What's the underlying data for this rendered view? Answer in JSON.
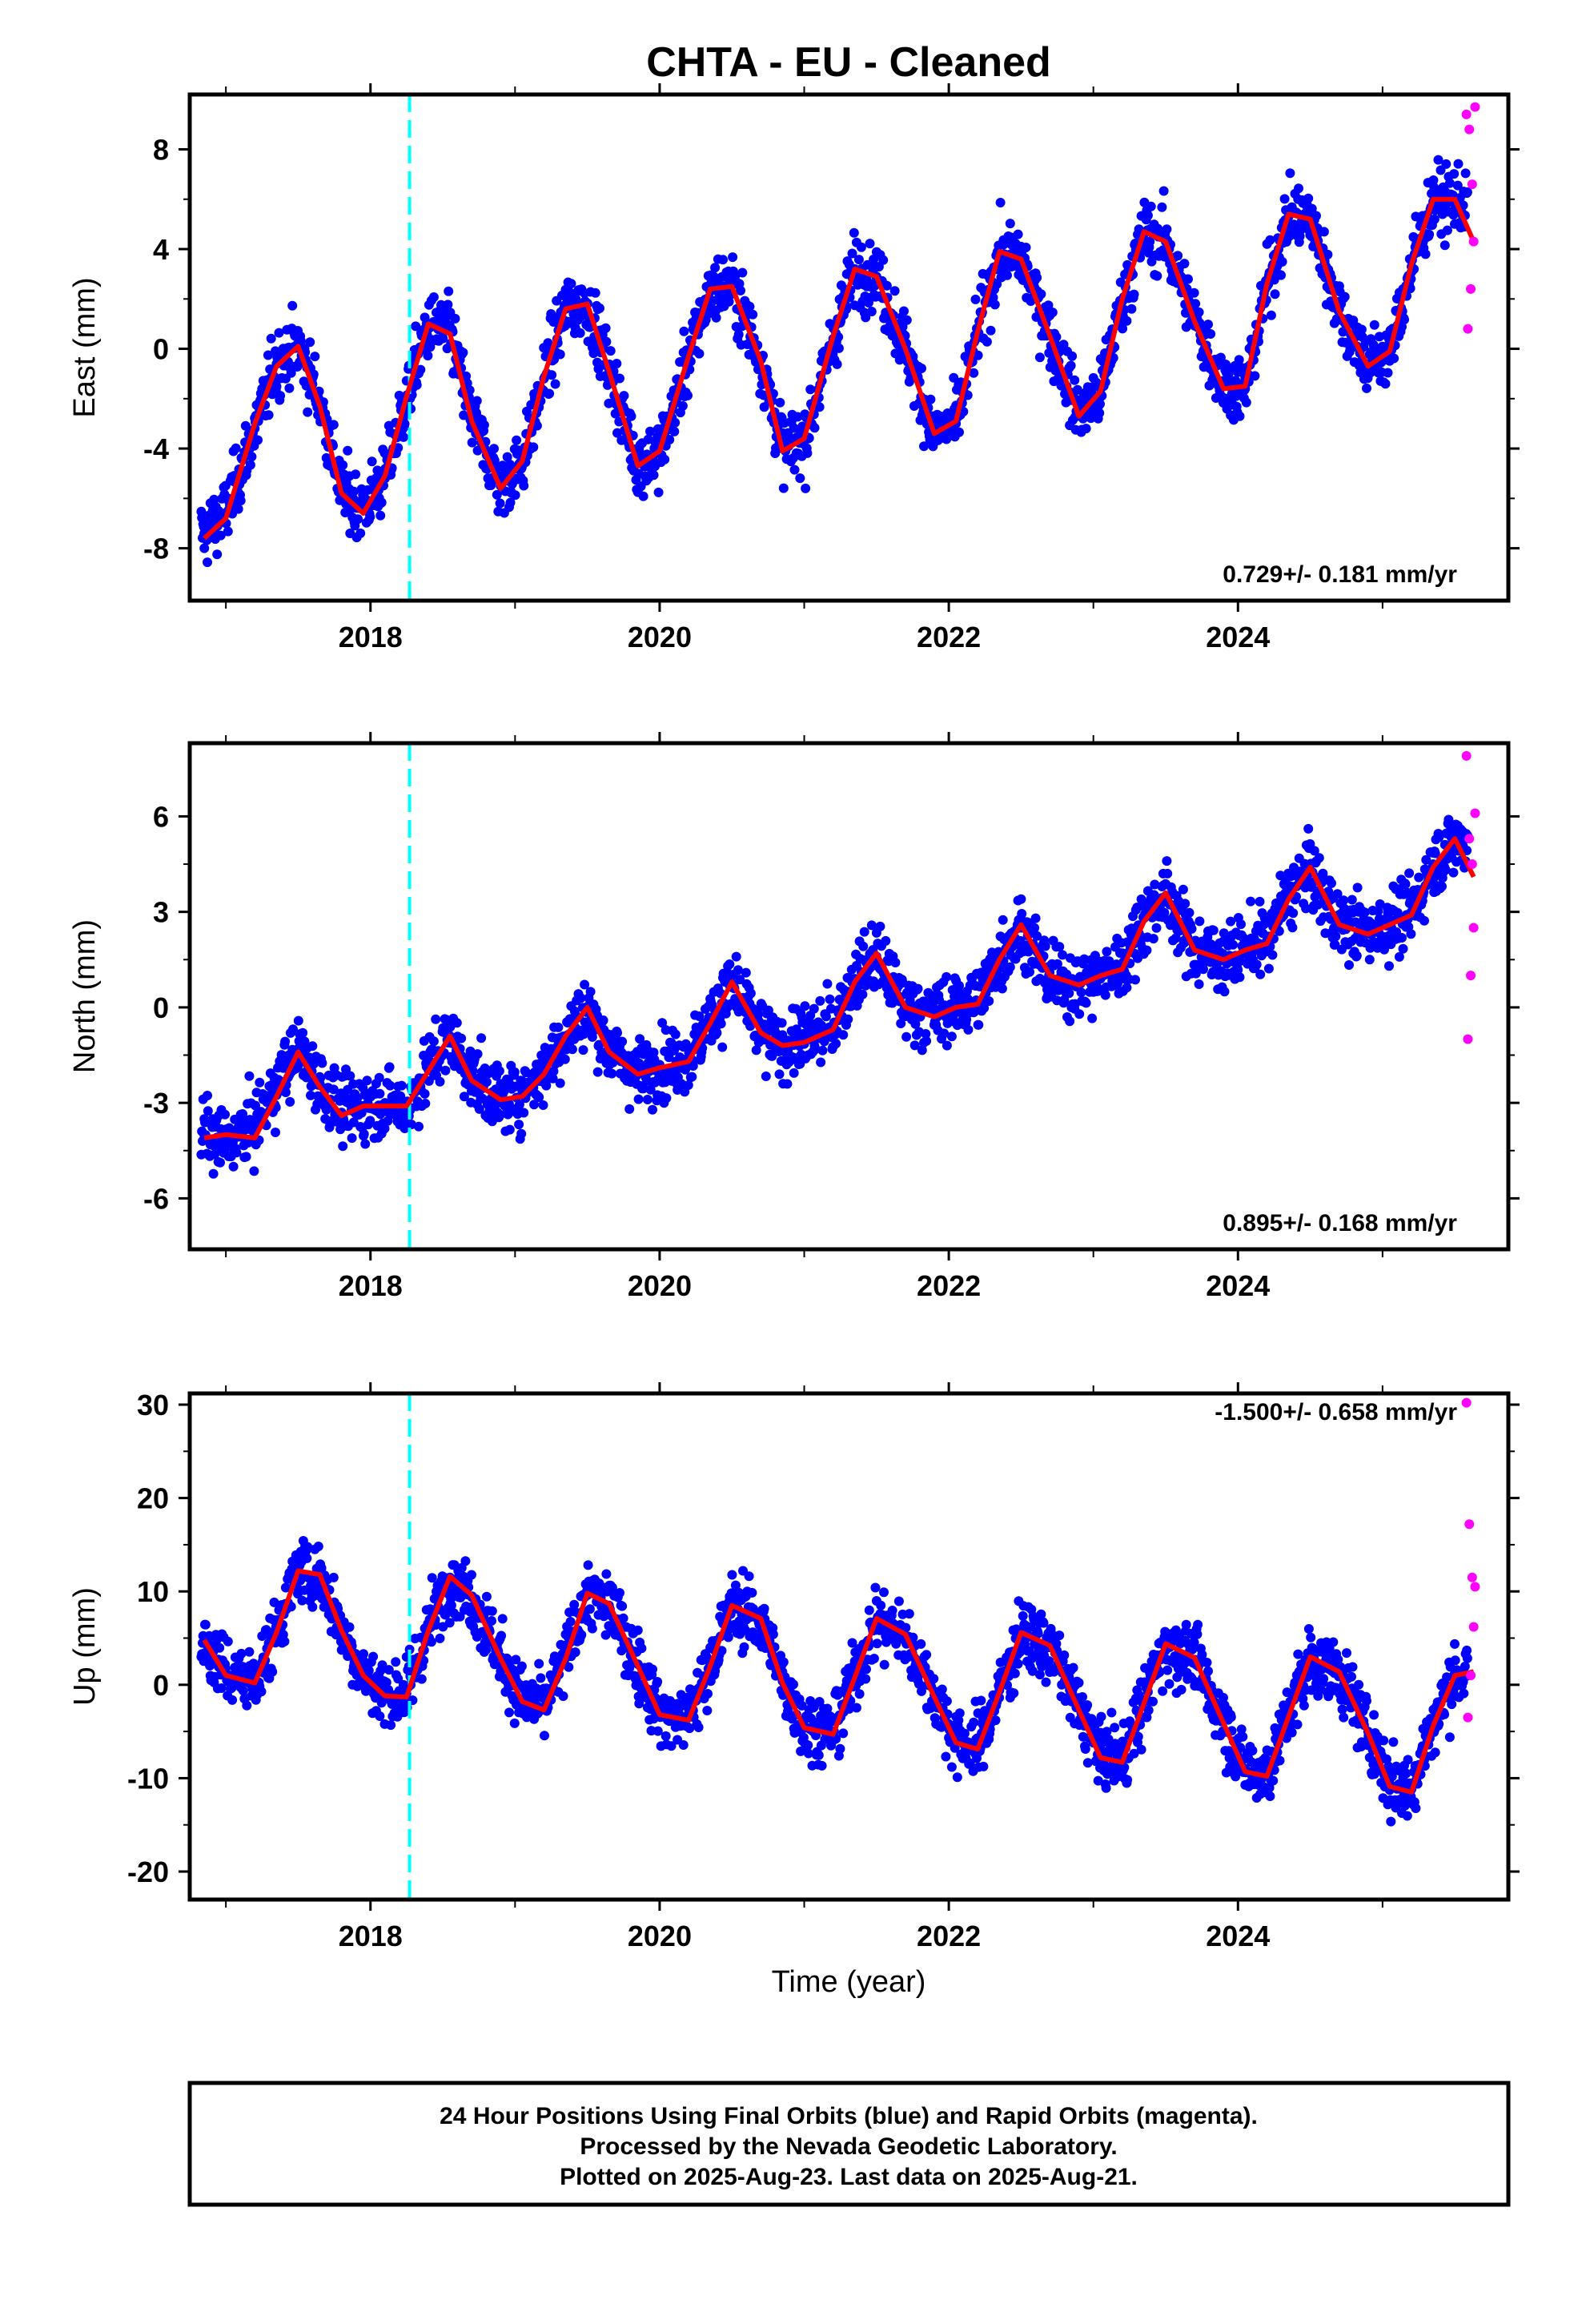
{
  "title": "CHTA  - EU - Cleaned",
  "xlabel": "Time (year)",
  "footer": [
    "24 Hour Positions Using Final Orbits (blue) and Rapid Orbits (magenta).",
    "Processed by the Nevada Geodetic Laboratory.",
    "Plotted on 2025-Aug-23. Last data on 2025-Aug-21."
  ],
  "colors": {
    "final": "#0000ff",
    "rapid": "#ff00ff",
    "model": "#ff0000",
    "event": "#00ffff"
  },
  "chart_data": [
    {
      "type": "scatter",
      "ylabel": "East (mm)",
      "rate_label": "0.729+/- 0.181 mm/yr",
      "xlim": [
        2016.75,
        2025.87
      ],
      "ylim": [
        -10.1,
        10.2
      ],
      "xticks": [
        2018,
        2020,
        2022,
        2024
      ],
      "yticks": [
        -8,
        -4,
        0,
        4,
        8
      ],
      "event_line_x": 2018.27,
      "series": [
        {
          "name": "Final Orbits",
          "x": [
            2016.85,
            2017.0,
            2017.2,
            2017.35,
            2017.5,
            2017.65,
            2017.8,
            2017.95,
            2018.1,
            2018.25,
            2018.4,
            2018.55,
            2018.7,
            2018.9,
            2019.05,
            2019.2,
            2019.35,
            2019.5,
            2019.65,
            2019.85,
            2020.0,
            2020.2,
            2020.35,
            2020.5,
            2020.7,
            2020.85,
            2021.0,
            2021.2,
            2021.35,
            2021.5,
            2021.7,
            2021.9,
            2022.05,
            2022.2,
            2022.35,
            2022.5,
            2022.7,
            2022.9,
            2023.05,
            2023.2,
            2023.35,
            2023.5,
            2023.7,
            2023.9,
            2024.05,
            2024.2,
            2024.35,
            2024.5,
            2024.7,
            2024.9,
            2025.05,
            2025.2,
            2025.35,
            2025.5
          ],
          "y": [
            -7.4,
            -6.6,
            -3.2,
            -0.6,
            0.1,
            -2.1,
            -5.7,
            -6.4,
            -5.2,
            -2.0,
            0.9,
            0.7,
            -2.8,
            -5.5,
            -4.6,
            -1.2,
            1.6,
            1.8,
            -0.8,
            -4.6,
            -4.2,
            -0.4,
            2.3,
            2.6,
            -0.4,
            -4.0,
            -3.7,
            0.4,
            3.2,
            2.9,
            0.1,
            -3.4,
            -3.0,
            0.6,
            3.8,
            3.6,
            0.6,
            -2.6,
            -1.8,
            1.9,
            4.6,
            4.3,
            1.2,
            -1.4,
            -1.6,
            2.5,
            5.3,
            5.2,
            1.6,
            -0.6,
            -0.2,
            3.3,
            5.9,
            5.9
          ]
        },
        {
          "name": "Rapid Orbits",
          "x": [
            2025.58,
            2025.59,
            2025.6,
            2025.61,
            2025.62,
            2025.63,
            2025.64
          ],
          "y": [
            9.4,
            0.8,
            8.8,
            2.4,
            6.6,
            4.3,
            9.7
          ]
        }
      ],
      "model": {
        "x": [
          2016.85,
          2017.0,
          2017.2,
          2017.35,
          2017.5,
          2017.65,
          2017.8,
          2017.95,
          2018.1,
          2018.25,
          2018.4,
          2018.55,
          2018.7,
          2018.9,
          2019.05,
          2019.2,
          2019.35,
          2019.5,
          2019.65,
          2019.85,
          2020.0,
          2020.2,
          2020.35,
          2020.5,
          2020.7,
          2020.85,
          2021.0,
          2021.2,
          2021.35,
          2021.5,
          2021.7,
          2021.9,
          2022.05,
          2022.2,
          2022.35,
          2022.5,
          2022.7,
          2022.9,
          2023.05,
          2023.2,
          2023.35,
          2023.5,
          2023.7,
          2023.9,
          2024.05,
          2024.2,
          2024.35,
          2024.5,
          2024.7,
          2024.9,
          2025.05,
          2025.2,
          2025.35,
          2025.5,
          2025.63
        ],
        "y": [
          -7.6,
          -6.8,
          -3.0,
          -0.7,
          0.1,
          -2.3,
          -5.8,
          -6.6,
          -5.1,
          -1.9,
          1.0,
          0.6,
          -2.9,
          -5.6,
          -4.5,
          -1.1,
          1.6,
          1.8,
          -0.9,
          -4.7,
          -4.1,
          -0.3,
          2.4,
          2.5,
          -0.5,
          -4.1,
          -3.6,
          0.5,
          3.2,
          2.9,
          0.0,
          -3.4,
          -2.9,
          0.7,
          3.9,
          3.6,
          0.5,
          -2.7,
          -1.7,
          2.0,
          4.7,
          4.3,
          1.1,
          -1.6,
          -1.5,
          2.6,
          5.4,
          5.2,
          1.5,
          -0.7,
          -0.1,
          3.4,
          6.0,
          6.0,
          4.3
        ]
      }
    },
    {
      "type": "scatter",
      "ylabel": "North (mm)",
      "rate_label": "0.895+/- 0.168 mm/yr",
      "xlim": [
        2016.75,
        2025.87
      ],
      "ylim": [
        -7.6,
        8.3
      ],
      "xticks": [
        2018,
        2020,
        2022,
        2024
      ],
      "yticks": [
        -6,
        -3,
        0,
        3,
        6
      ],
      "event_line_x": 2018.27,
      "series": [
        {
          "name": "Final Orbits",
          "x": [
            2016.85,
            2017.0,
            2017.2,
            2017.35,
            2017.5,
            2017.65,
            2017.8,
            2017.95,
            2018.1,
            2018.25,
            2018.4,
            2018.55,
            2018.7,
            2018.9,
            2019.05,
            2019.2,
            2019.35,
            2019.5,
            2019.65,
            2019.85,
            2020.0,
            2020.2,
            2020.35,
            2020.5,
            2020.7,
            2020.85,
            2021.0,
            2021.2,
            2021.35,
            2021.5,
            2021.7,
            2021.9,
            2022.05,
            2022.2,
            2022.35,
            2022.5,
            2022.7,
            2022.9,
            2023.05,
            2023.2,
            2023.35,
            2023.5,
            2023.7,
            2023.9,
            2024.05,
            2024.2,
            2024.35,
            2024.5,
            2024.7,
            2024.9,
            2025.05,
            2025.2,
            2025.35,
            2025.5
          ],
          "y": [
            -4.0,
            -4.3,
            -3.7,
            -2.5,
            -1.3,
            -2.4,
            -3.3,
            -3.1,
            -3.0,
            -3.2,
            -1.9,
            -0.9,
            -2.2,
            -2.9,
            -2.7,
            -2.0,
            -0.9,
            -0.1,
            -1.3,
            -2.1,
            -1.8,
            -1.6,
            -0.4,
            0.7,
            -0.8,
            -1.3,
            -1.0,
            -0.6,
            0.9,
            1.6,
            0.0,
            -0.2,
            0.0,
            0.2,
            1.6,
            2.5,
            0.9,
            0.7,
            0.9,
            1.3,
            2.8,
            3.5,
            1.8,
            1.6,
            1.9,
            2.1,
            3.5,
            4.3,
            2.6,
            2.4,
            2.7,
            3.0,
            4.5,
            5.2
          ]
        },
        {
          "name": "Rapid Orbits",
          "x": [
            2025.58,
            2025.59,
            2025.6,
            2025.61,
            2025.62,
            2025.63,
            2025.64
          ],
          "y": [
            7.9,
            -1.0,
            5.3,
            1.0,
            4.5,
            2.5,
            6.1
          ]
        }
      ],
      "model": {
        "x": [
          2016.85,
          2017.0,
          2017.2,
          2017.35,
          2017.5,
          2017.65,
          2017.8,
          2017.95,
          2018.1,
          2018.25,
          2018.4,
          2018.55,
          2018.7,
          2018.9,
          2019.05,
          2019.2,
          2019.35,
          2019.5,
          2019.65,
          2019.85,
          2020.0,
          2020.2,
          2020.35,
          2020.5,
          2020.7,
          2020.85,
          2021.0,
          2021.2,
          2021.35,
          2021.5,
          2021.7,
          2021.9,
          2022.05,
          2022.2,
          2022.35,
          2022.5,
          2022.7,
          2022.9,
          2023.05,
          2023.2,
          2023.35,
          2023.5,
          2023.7,
          2023.9,
          2024.05,
          2024.2,
          2024.35,
          2024.5,
          2024.7,
          2024.9,
          2025.05,
          2025.2,
          2025.35,
          2025.5,
          2025.63
        ],
        "y": [
          -4.1,
          -4.0,
          -4.1,
          -2.8,
          -1.4,
          -2.5,
          -3.4,
          -3.1,
          -3.1,
          -3.1,
          -2.0,
          -0.9,
          -2.3,
          -2.9,
          -2.8,
          -2.1,
          -0.9,
          0.0,
          -1.4,
          -2.1,
          -1.9,
          -1.7,
          -0.5,
          0.8,
          -0.8,
          -1.2,
          -1.1,
          -0.7,
          0.8,
          1.7,
          0.0,
          -0.3,
          0.0,
          0.1,
          1.5,
          2.6,
          1.0,
          0.7,
          1.0,
          1.2,
          2.7,
          3.6,
          1.8,
          1.5,
          1.8,
          2.0,
          3.4,
          4.4,
          2.6,
          2.3,
          2.6,
          2.9,
          4.4,
          5.3,
          4.1
        ]
      }
    },
    {
      "type": "scatter",
      "ylabel": "Up (mm)",
      "rate_label": "-1.500+/- 0.658 mm/yr",
      "xlim": [
        2016.75,
        2025.87
      ],
      "ylim": [
        -23.0,
        31.2
      ],
      "xticks": [
        2018,
        2020,
        2022,
        2024
      ],
      "yticks": [
        -20,
        -10,
        0,
        10,
        20,
        30
      ],
      "event_line_x": 2018.27,
      "series": [
        {
          "name": "Final Orbits",
          "x": [
            2016.85,
            2017.0,
            2017.2,
            2017.35,
            2017.5,
            2017.65,
            2017.8,
            2017.95,
            2018.1,
            2018.25,
            2018.4,
            2018.55,
            2018.7,
            2018.9,
            2019.05,
            2019.2,
            2019.35,
            2019.5,
            2019.65,
            2019.85,
            2020.0,
            2020.2,
            2020.35,
            2020.5,
            2020.7,
            2020.85,
            2021.0,
            2021.2,
            2021.35,
            2021.5,
            2021.7,
            2021.9,
            2022.05,
            2022.2,
            2022.35,
            2022.5,
            2022.7,
            2022.9,
            2023.05,
            2023.2,
            2023.35,
            2023.5,
            2023.7,
            2023.9,
            2024.05,
            2024.2,
            2024.35,
            2024.5,
            2024.7,
            2024.9,
            2025.05,
            2025.2,
            2025.35,
            2025.5
          ],
          "y": [
            4.5,
            1.2,
            0.4,
            5.8,
            12.4,
            11.6,
            6.0,
            1.2,
            -1.0,
            -0.9,
            6.0,
            11.5,
            9.4,
            3.0,
            -1.5,
            -2.4,
            3.0,
            9.6,
            8.5,
            2.2,
            -3.0,
            -3.5,
            2.2,
            8.3,
            6.9,
            0.4,
            -4.4,
            -5.0,
            1.0,
            6.9,
            5.2,
            -1.1,
            -6.0,
            -6.6,
            -0.6,
            5.4,
            4.0,
            -2.5,
            -7.5,
            -8.0,
            -1.8,
            4.2,
            2.7,
            -3.9,
            -9.0,
            -9.5,
            -3.2,
            2.8,
            1.2,
            -5.0,
            -10.6,
            -11.2,
            -4.2,
            1.2
          ]
        },
        {
          "name": "Rapid Orbits",
          "x": [
            2025.58,
            2025.59,
            2025.6,
            2025.61,
            2025.62,
            2025.63,
            2025.64
          ],
          "y": [
            30.2,
            -3.5,
            17.2,
            1.0,
            11.5,
            6.2,
            10.5
          ]
        }
      ],
      "model": {
        "x": [
          2016.85,
          2017.0,
          2017.2,
          2017.35,
          2017.5,
          2017.65,
          2017.8,
          2017.95,
          2018.1,
          2018.25,
          2018.4,
          2018.55,
          2018.7,
          2018.9,
          2019.05,
          2019.2,
          2019.35,
          2019.5,
          2019.65,
          2019.85,
          2020.0,
          2020.2,
          2020.35,
          2020.5,
          2020.7,
          2020.85,
          2021.0,
          2021.2,
          2021.35,
          2021.5,
          2021.7,
          2021.9,
          2022.05,
          2022.2,
          2022.35,
          2022.5,
          2022.7,
          2022.9,
          2023.05,
          2023.2,
          2023.35,
          2023.5,
          2023.7,
          2023.9,
          2024.05,
          2024.2,
          2024.35,
          2024.5,
          2024.7,
          2024.9,
          2025.05,
          2025.2,
          2025.35,
          2025.5,
          2025.63
        ],
        "y": [
          4.8,
          1.0,
          0.2,
          5.6,
          12.2,
          11.8,
          5.8,
          1.0,
          -1.2,
          -1.3,
          5.8,
          11.6,
          9.6,
          2.8,
          -1.8,
          -2.7,
          2.8,
          9.8,
          8.7,
          2.0,
          -3.2,
          -3.8,
          2.0,
          8.5,
          7.1,
          0.2,
          -4.6,
          -5.3,
          0.8,
          7.1,
          5.4,
          -1.3,
          -6.2,
          -6.9,
          -0.8,
          5.6,
          4.2,
          -2.7,
          -7.8,
          -8.3,
          -2.0,
          4.4,
          2.9,
          -4.1,
          -9.3,
          -9.8,
          -3.4,
          3.0,
          1.4,
          -5.2,
          -10.9,
          -11.5,
          -4.4,
          1.0,
          1.4
        ]
      }
    }
  ]
}
